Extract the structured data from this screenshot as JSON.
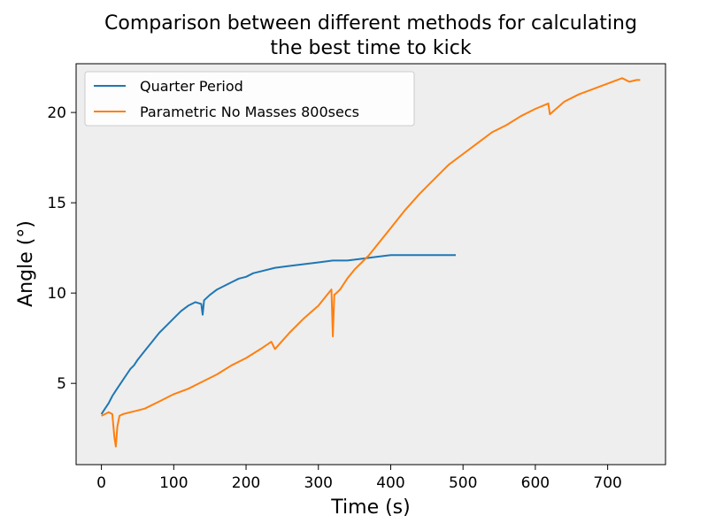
{
  "chart_data": {
    "type": "line",
    "title_lines": [
      "Comparison between different methods for calculating",
      "the best time to kick"
    ],
    "xlabel": "Time (s)",
    "ylabel": "Angle (°)",
    "xlim": [
      -35,
      780
    ],
    "ylim": [
      0.5,
      22.7
    ],
    "xticks": [
      0,
      100,
      200,
      300,
      400,
      500,
      600,
      700
    ],
    "yticks": [
      5,
      10,
      15,
      20
    ],
    "plot_background": "#eeeeee",
    "grid": false,
    "legend_position": "top-left",
    "series": [
      {
        "name": "Quarter Period",
        "color": "#1f77b4",
        "x": [
          0,
          5,
          10,
          15,
          20,
          25,
          30,
          35,
          40,
          45,
          50,
          60,
          70,
          80,
          90,
          100,
          110,
          120,
          130,
          138,
          140,
          142,
          150,
          160,
          170,
          180,
          190,
          200,
          210,
          220,
          240,
          260,
          280,
          300,
          320,
          340,
          360,
          380,
          400,
          420,
          440,
          460,
          480,
          490
        ],
        "y": [
          3.3,
          3.6,
          3.9,
          4.3,
          4.6,
          4.9,
          5.2,
          5.5,
          5.8,
          6.0,
          6.3,
          6.8,
          7.3,
          7.8,
          8.2,
          8.6,
          9.0,
          9.3,
          9.5,
          9.4,
          8.8,
          9.6,
          9.9,
          10.2,
          10.4,
          10.6,
          10.8,
          10.9,
          11.1,
          11.2,
          11.4,
          11.5,
          11.6,
          11.7,
          11.8,
          11.8,
          11.9,
          12.0,
          12.1,
          12.1,
          12.1,
          12.1,
          12.1,
          12.1
        ]
      },
      {
        "name": "Parametric No Masses 800secs",
        "color": "#ff7f0e",
        "x": [
          0,
          5,
          10,
          15,
          18,
          20,
          22,
          25,
          30,
          40,
          50,
          60,
          80,
          100,
          120,
          140,
          160,
          180,
          200,
          220,
          235,
          240,
          260,
          280,
          300,
          310,
          318,
          320,
          322,
          325,
          330,
          340,
          350,
          360,
          370,
          380,
          400,
          420,
          440,
          460,
          480,
          500,
          520,
          540,
          560,
          580,
          600,
          618,
          620,
          640,
          660,
          680,
          700,
          720,
          730,
          740,
          745
        ],
        "y": [
          3.2,
          3.3,
          3.4,
          3.3,
          2.0,
          1.5,
          2.6,
          3.2,
          3.3,
          3.4,
          3.5,
          3.6,
          4.0,
          4.4,
          4.7,
          5.1,
          5.5,
          6.0,
          6.4,
          6.9,
          7.3,
          6.9,
          7.8,
          8.6,
          9.3,
          9.8,
          10.2,
          7.6,
          9.9,
          10.0,
          10.2,
          10.8,
          11.3,
          11.7,
          12.1,
          12.6,
          13.6,
          14.6,
          15.5,
          16.3,
          17.1,
          17.7,
          18.3,
          18.9,
          19.3,
          19.8,
          20.2,
          20.5,
          19.9,
          20.6,
          21.0,
          21.3,
          21.6,
          21.9,
          21.7,
          21.8,
          21.8
        ]
      }
    ]
  }
}
